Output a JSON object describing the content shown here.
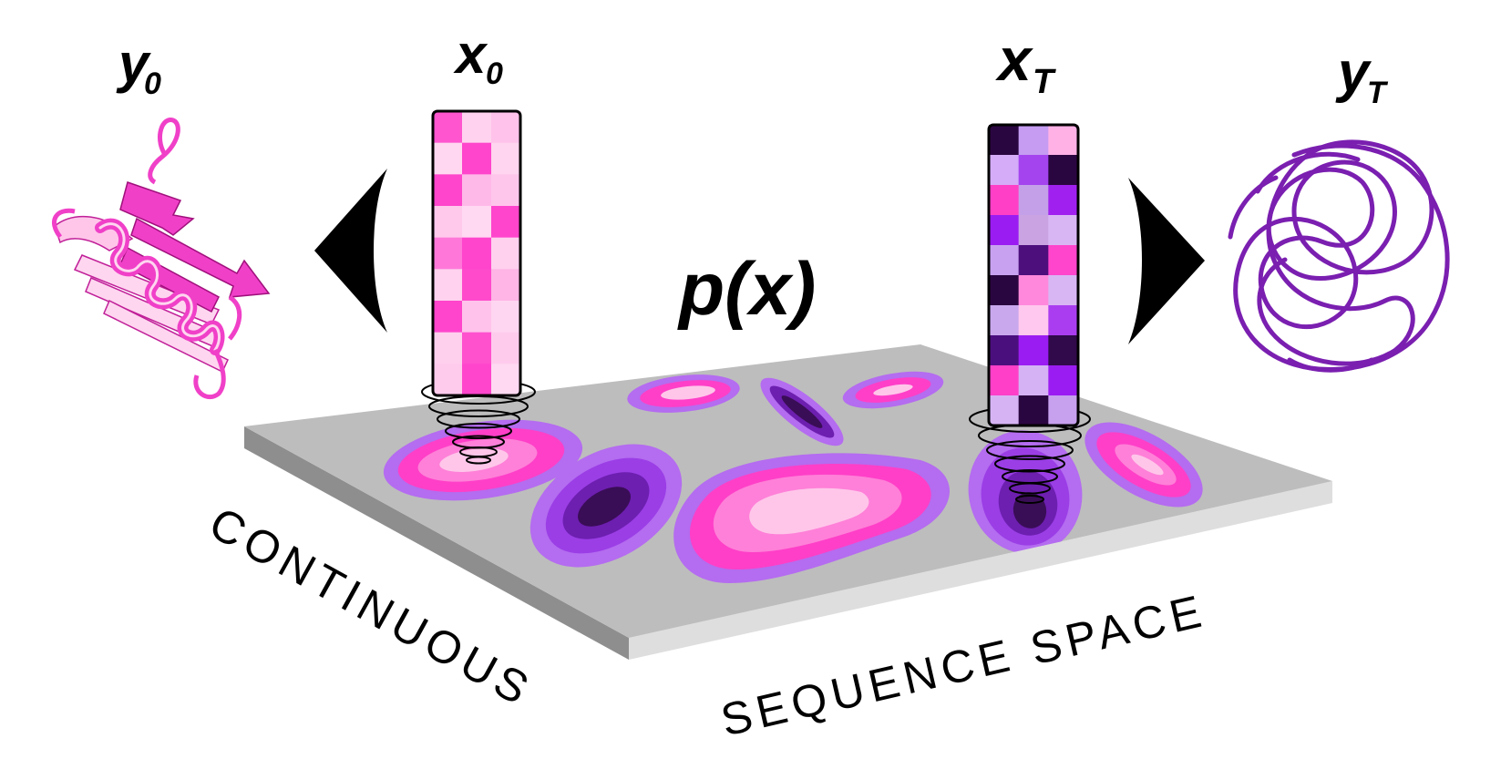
{
  "labels": {
    "y0_main": "y",
    "y0_sub": "0",
    "x0_main": "x",
    "x0_sub": "0",
    "xT_main": "x",
    "xT_sub": "T",
    "yT_main": "y",
    "yT_sub": "T",
    "density": "p(x)",
    "axis_left": "CONTINUOUS",
    "axis_right": "SEQUENCE SPACE"
  },
  "colors": {
    "plate_top": "#b8b8b8",
    "plate_side": "#888888",
    "plate_front": "#dcdcdc",
    "pink_bright": "#ff3fc8",
    "pink_light": "#ffc6ea",
    "pink_mid": "#ff80d8",
    "purple_light": "#c79bf0",
    "purple_mid": "#9b3ee6",
    "purple_dark": "#3a0d57",
    "protein_pink": "#f040c8",
    "protein_purple": "#7a1fb0"
  },
  "sequence_x0": [
    [
      "#ff55cf",
      "#ffd3ef",
      "#ffc2ea"
    ],
    [
      "#ffd7f1",
      "#ff45cc",
      "#ffd5ef"
    ],
    [
      "#ff45cc",
      "#ffb9e8",
      "#ffc6ec"
    ],
    [
      "#ffc9ec",
      "#ffd9f2",
      "#ff45cc"
    ],
    [
      "#ff78d9",
      "#ff45cc",
      "#ffd1ef"
    ],
    [
      "#ffd2ef",
      "#ff4acc",
      "#ffb5e6"
    ],
    [
      "#ff45cc",
      "#ffc3eb",
      "#ffd6f1"
    ],
    [
      "#ffd0ee",
      "#ff50ce",
      "#ffcbed"
    ],
    [
      "#ffcbed",
      "#ff45cc",
      "#ffd9f2"
    ]
  ],
  "sequence_xT": [
    [
      "#2a0640",
      "#c59cf2",
      "#ffb1e6"
    ],
    [
      "#d4acf7",
      "#a444ee",
      "#2a0640"
    ],
    [
      "#ff40c6",
      "#c4a0e8",
      "#a020f0"
    ],
    [
      "#9b1cf2",
      "#c9a3e2",
      "#d8b6f4"
    ],
    [
      "#c8a2f0",
      "#4c0f7c",
      "#ff45cc"
    ],
    [
      "#2a0640",
      "#ff88dc",
      "#d8b6f4"
    ],
    [
      "#c9a8ee",
      "#ffc8ee",
      "#ab3df0"
    ],
    [
      "#4b0f7d",
      "#9b1cf2",
      "#300a4a"
    ],
    [
      "#ff3fc8",
      "#d4b2f4",
      "#9b1cf2"
    ],
    [
      "#d6b4f4",
      "#2a0640",
      "#c7a0ee"
    ]
  ]
}
